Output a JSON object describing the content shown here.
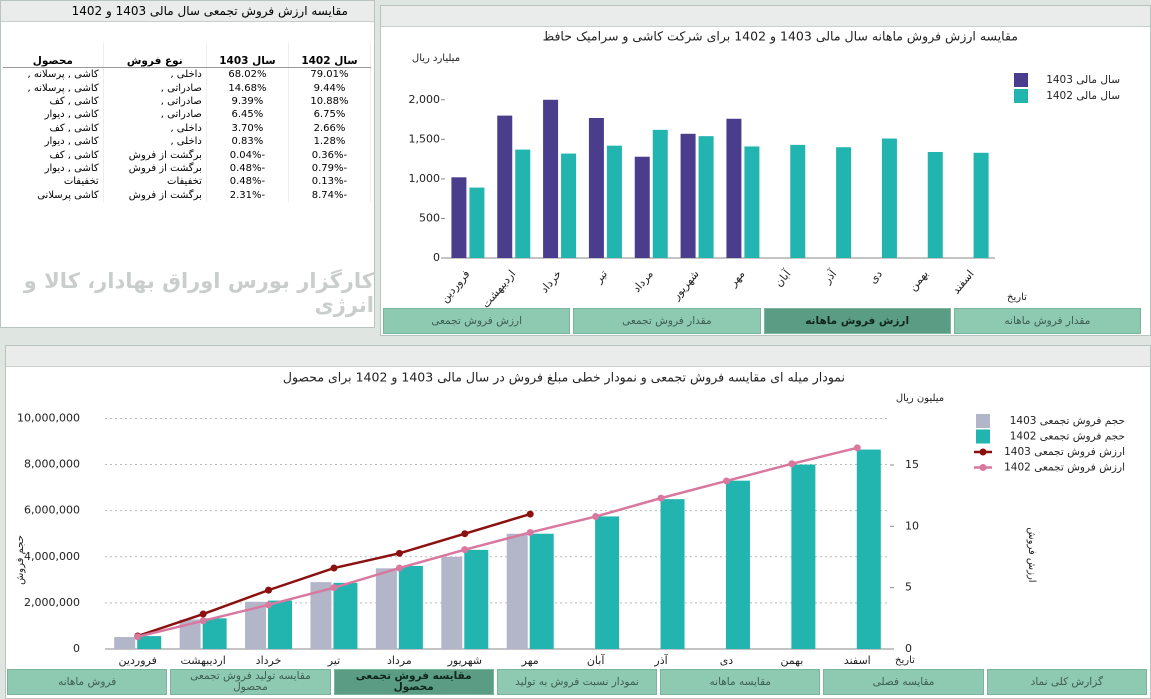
{
  "table_panel": {
    "title": "مقایسه ارزش فروش تجمعی سال مالی 1403 و 1402",
    "columns": [
      "محصول",
      "نوع فروش",
      "سال 1403",
      "سال 1402"
    ],
    "rows": [
      [
        "کاشی , پرسلانه ,",
        "داخلی ,",
        "68.02%",
        "79.01%"
      ],
      [
        "کاشی , پرسلانه ,",
        "صادراتی ,",
        "14.68%",
        "9.44%"
      ],
      [
        "کاشی , کف",
        "صادراتی ,",
        "9.39%",
        "10.88%"
      ],
      [
        "کاشی , دیوار",
        "صادراتی ,",
        "6.45%",
        "6.75%"
      ],
      [
        "کاشی , کف",
        "داخلی ,",
        "3.70%",
        "2.66%"
      ],
      [
        "کاشی , دیوار",
        "داخلی ,",
        "0.83%",
        "1.28%"
      ],
      [
        "کاشی , کف",
        "برگشت از فروش",
        "-0.04%",
        "-0.36%"
      ],
      [
        "کاشی , دیوار",
        "برگشت از فروش",
        "-0.48%",
        "-0.79%"
      ],
      [
        "تخفیفات",
        "تخفیفات",
        "-0.48%",
        "-0.13%"
      ],
      [
        "کاشی پرسلانی",
        "برگشت از فروش",
        "-2.31%",
        "-8.74%"
      ]
    ],
    "watermark": "کارگزار بورس اوراق بهادار، کالا و انرژی"
  },
  "top_tabs": [
    "ارزش فروش تجمعی",
    "مقدار فروش تجمعی",
    "ارزش فروش ماهانه",
    "مقدار فروش ماهانه"
  ],
  "bottom_tabs": [
    "فروش ماهانه",
    "مقایسه تولید فروش تجمعی محصول",
    "مقایسه فروش تجمعی محصول",
    "نمودار نسبت فروش به تولید",
    "مقایسه ماهانه",
    "مقایسه فصلی",
    "گزارش کلی نماد"
  ],
  "chart_data": [
    {
      "type": "bar",
      "title": "مقایسه ارزش فروش ماهانه سال مالی 1403 و 1402 برای شرکت کاشی و سرامیک حافظ",
      "y_label": "میلیارد ریال",
      "x_label": "تاریخ",
      "categories": [
        "فروردین",
        "اردیبهشت",
        "خرداد",
        "تیر",
        "مرداد",
        "شهریور",
        "مهر",
        "آبان",
        "آذر",
        "دی",
        "بهمن",
        "اسفند"
      ],
      "series": [
        {
          "name": "سال مالی 1403",
          "color": "#4a3d8c",
          "values": [
            1020,
            1800,
            2000,
            1770,
            1280,
            1570,
            1760,
            null,
            null,
            null,
            null,
            null
          ]
        },
        {
          "name": "سال مالی 1402",
          "color": "#22b4ae",
          "values": [
            890,
            1370,
            1320,
            1420,
            1620,
            1540,
            1410,
            1430,
            1400,
            1510,
            1340,
            1330
          ]
        }
      ],
      "ylim": [
        0,
        2250
      ],
      "yticks": [
        0,
        500,
        {
          "value": 1000,
          "label": "1,000"
        },
        {
          "value": 1500,
          "label": "1,500"
        },
        {
          "value": 2000,
          "label": "2,000"
        }
      ],
      "grid": false
    },
    {
      "type": "combo",
      "title": "نمودار میله ای مقایسه فروش تجمعی و نمودار خطی مبلغ فروش در سال مالی 1403 و 1402 برای محصول",
      "y_label": "حجم فروش",
      "y2_label": "ارزش فروش",
      "y2_unit": "میلیون ریال",
      "x_label": "تاریخ",
      "categories": [
        "فروردین",
        "اردیبهشت",
        "خرداد",
        "تیر",
        "مرداد",
        "شهریور",
        "مهر",
        "آبان",
        "آذر",
        "دی",
        "بهمن",
        "اسفند"
      ],
      "series": [
        {
          "name": "حجم فروش تجمعی 1403",
          "type": "bar",
          "color": "#b3b6c9",
          "values": [
            520000,
            1280000,
            2050000,
            2900000,
            3500000,
            4000000,
            5000000,
            null,
            null,
            null,
            null,
            null
          ]
        },
        {
          "name": "حجم فروش تجمعی 1402",
          "type": "bar",
          "color": "#22b4ae",
          "values": [
            560000,
            1330000,
            2100000,
            2870000,
            3600000,
            4300000,
            5000000,
            5750000,
            6500000,
            7300000,
            8000000,
            8650000
          ]
        },
        {
          "name": "ارزش فروش تجمعی 1403",
          "type": "line",
          "axis": "y2",
          "color": "#8b1010",
          "values": [
            1.06,
            2.85,
            4.8,
            6.6,
            7.8,
            9.4,
            11.0,
            null,
            null,
            null,
            null,
            null
          ]
        },
        {
          "name": "ارزش فروش تجمعی 1402",
          "type": "line",
          "axis": "y2",
          "color": "#d9789f",
          "values": [
            1.0,
            2.3,
            3.6,
            5.0,
            6.6,
            8.1,
            9.5,
            10.8,
            12.3,
            13.7,
            15.1,
            16.4
          ]
        }
      ],
      "ylim": [
        0,
        10800000
      ],
      "yticks": [
        0,
        {
          "value": 2000000,
          "label": "2,000,000"
        },
        {
          "value": 4000000,
          "label": "4,000,000"
        },
        {
          "value": 6000000,
          "label": "6,000,000"
        },
        {
          "value": 8000000,
          "label": "8,000,000"
        },
        {
          "value": 10000000,
          "label": "10,000,000"
        }
      ],
      "y2lim": [
        0,
        20.3
      ],
      "y2ticks": [
        0,
        5,
        10,
        15
      ],
      "grid": true
    }
  ]
}
